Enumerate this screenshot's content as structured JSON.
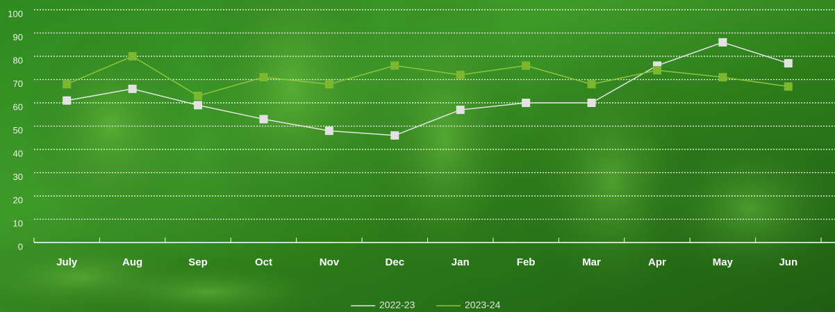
{
  "chart_data": {
    "type": "line",
    "categories": [
      "July",
      "Aug",
      "Sep",
      "Oct",
      "Nov",
      "Dec",
      "Jan",
      "Feb",
      "Mar",
      "Apr",
      "May",
      "Jun"
    ],
    "series": [
      {
        "name": "2022-23",
        "color": "#e6e6e6",
        "values": [
          61,
          66,
          59,
          53,
          48,
          46,
          57,
          60,
          60,
          76,
          86,
          77
        ]
      },
      {
        "name": "2023-24",
        "color": "#8cc63e",
        "values": [
          68,
          80,
          63,
          71,
          68,
          76,
          72,
          76,
          68,
          74,
          71,
          67
        ]
      }
    ],
    "ylim": [
      0,
      100
    ],
    "yticks": [
      0,
      10,
      20,
      30,
      40,
      50,
      60,
      70,
      80,
      90,
      100
    ],
    "grid": true,
    "legend": "bottom"
  }
}
